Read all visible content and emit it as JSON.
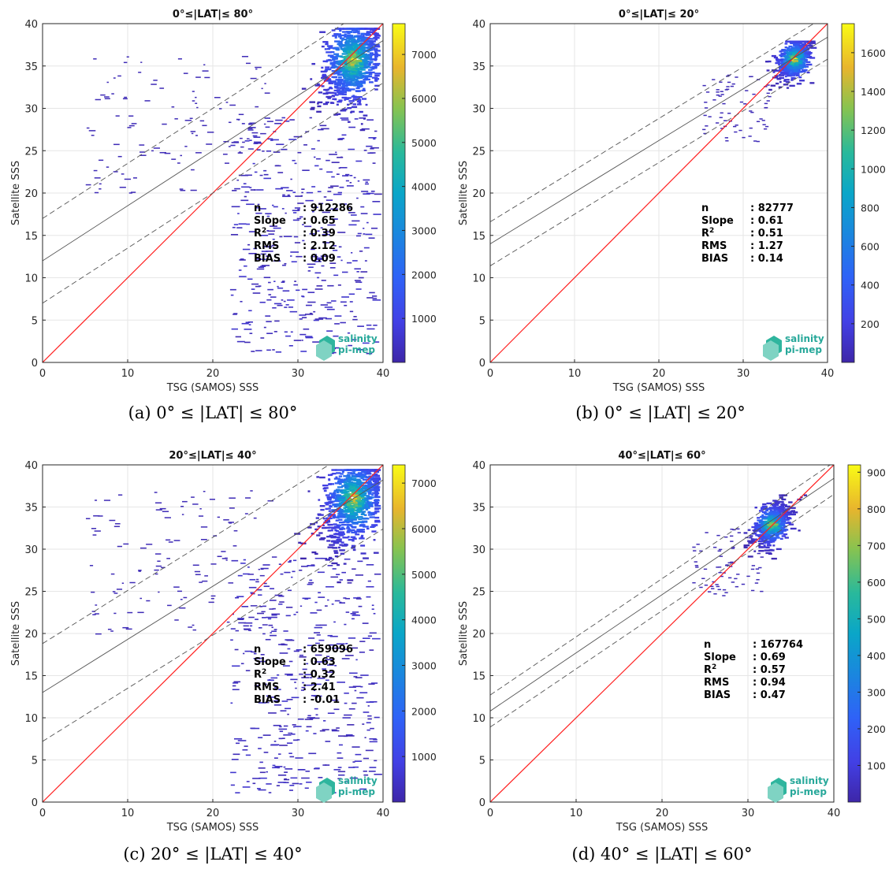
{
  "chart_data": [
    {
      "type": "heatmap",
      "title": "0°≤|LAT|≤ 80°",
      "xlabel": "TSG (SAMOS) SSS",
      "ylabel": "Satellite SSS",
      "xlim": [
        0,
        40
      ],
      "ylim": [
        0,
        40
      ],
      "xticks": [
        "0",
        "10",
        "20",
        "30",
        "40"
      ],
      "yticks": [
        "0",
        "5",
        "10",
        "15",
        "20",
        "25",
        "30",
        "35",
        "40"
      ],
      "grid": true,
      "colorbar": {
        "ticks": [
          "1000",
          "2000",
          "3000",
          "4000",
          "5000",
          "6000",
          "7000"
        ],
        "max": 7700
      },
      "stats": [
        {
          "label": "n",
          "value": ": 912286"
        },
        {
          "label": "Slope",
          "value": ": 0.65"
        },
        {
          "label": "R",
          "sup": "2",
          "value": ": 0.39"
        },
        {
          "label": "RMS",
          "value": ": 2.12"
        },
        {
          "label": "BIAS",
          "value": ": 0.09"
        }
      ],
      "fit_line": {
        "intercept": 12.0,
        "slope": 0.65
      },
      "band_offset": 5.0,
      "identity_line": true,
      "density": {
        "peak_x": 36.2,
        "peak_y": 35.8,
        "x_range": [
          27,
          39
        ],
        "y_range": [
          22,
          39.5
        ],
        "sparse_tail": true
      },
      "caption": "(a) 0° ≤ |LAT| ≤ 80°",
      "logo": [
        "salinity",
        "pi-mep"
      ]
    },
    {
      "type": "heatmap",
      "title": "0°≤|LAT|≤ 20°",
      "xlabel": "TSG (SAMOS) SSS",
      "ylabel": "Satellite SSS",
      "xlim": [
        0,
        40
      ],
      "ylim": [
        0,
        40
      ],
      "xticks": [
        "0",
        "10",
        "20",
        "30",
        "40"
      ],
      "yticks": [
        "0",
        "5",
        "10",
        "15",
        "20",
        "25",
        "30",
        "35",
        "40"
      ],
      "grid": true,
      "colorbar": {
        "ticks": [
          "200",
          "400",
          "600",
          "800",
          "1000",
          "1200",
          "1400",
          "1600"
        ],
        "max": 1750
      },
      "stats": [
        {
          "label": "n",
          "value": ": 82777"
        },
        {
          "label": "Slope",
          "value": ": 0.61"
        },
        {
          "label": "R",
          "sup": "2",
          "value": ": 0.51"
        },
        {
          "label": "RMS",
          "value": ": 1.27"
        },
        {
          "label": "BIAS",
          "value": ": 0.14"
        }
      ],
      "fit_line": {
        "intercept": 14.0,
        "slope": 0.61
      },
      "band_offset": 2.6,
      "identity_line": true,
      "density": {
        "peak_x": 35.8,
        "peak_y": 35.9,
        "x_range": [
          31,
          38
        ],
        "y_range": [
          30,
          38
        ],
        "sparse_tail": false
      },
      "caption": "(b) 0° ≤ |LAT| ≤ 20°",
      "logo": [
        "salinity",
        "pi-mep"
      ]
    },
    {
      "type": "heatmap",
      "title": "20°≤|LAT|≤ 40°",
      "xlabel": "TSG (SAMOS) SSS",
      "ylabel": "Satellite SSS",
      "xlim": [
        0,
        40
      ],
      "ylim": [
        0,
        40
      ],
      "xticks": [
        "0",
        "10",
        "20",
        "30",
        "40"
      ],
      "yticks": [
        "0",
        "5",
        "10",
        "15",
        "20",
        "25",
        "30",
        "35",
        "40"
      ],
      "grid": true,
      "colorbar": {
        "ticks": [
          "1000",
          "2000",
          "3000",
          "4000",
          "5000",
          "6000",
          "7000"
        ],
        "max": 7400
      },
      "stats": [
        {
          "label": "n",
          "value": ": 659096"
        },
        {
          "label": "Slope",
          "value": ": 0.63"
        },
        {
          "label": "R",
          "sup": "2",
          "value": ": 0.32"
        },
        {
          "label": "RMS",
          "value": ": 2.41"
        },
        {
          "label": "BIAS",
          "value": ": -0.01"
        }
      ],
      "fit_line": {
        "intercept": 13.0,
        "slope": 0.63
      },
      "band_offset": 5.8,
      "identity_line": true,
      "density": {
        "peak_x": 36.3,
        "peak_y": 36.0,
        "x_range": [
          27,
          39
        ],
        "y_range": [
          22,
          39.5
        ],
        "sparse_tail": true
      },
      "caption": "(c) 20° ≤ |LAT| ≤ 40°",
      "logo": [
        "salinity",
        "pi-mep"
      ]
    },
    {
      "type": "heatmap",
      "title": "40°≤|LAT|≤ 60°",
      "xlabel": "TSG (SAMOS) SSS",
      "ylabel": "Satellite SSS",
      "xlim": [
        0,
        40
      ],
      "ylim": [
        0,
        40
      ],
      "xticks": [
        "0",
        "10",
        "20",
        "30",
        "40"
      ],
      "yticks": [
        "0",
        "5",
        "10",
        "15",
        "20",
        "25",
        "30",
        "35",
        "40"
      ],
      "grid": true,
      "colorbar": {
        "ticks": [
          "100",
          "200",
          "300",
          "400",
          "500",
          "600",
          "700",
          "800",
          "900"
        ],
        "max": 920
      },
      "stats": [
        {
          "label": "n",
          "value": ": 167764"
        },
        {
          "label": "Slope",
          "value": ": 0.69"
        },
        {
          "label": "R",
          "sup": "2",
          "value": ": 0.57"
        },
        {
          "label": "RMS",
          "value": ": 0.94"
        },
        {
          "label": "BIAS",
          "value": ": 0.47"
        }
      ],
      "fit_line": {
        "intercept": 10.8,
        "slope": 0.69
      },
      "band_offset": 1.9,
      "identity_line": true,
      "density": {
        "peak_x": 32.5,
        "peak_y": 33.0,
        "x_range": [
          29.5,
          36.5
        ],
        "y_range": [
          28.5,
          36.5
        ],
        "sparse_tail": false
      },
      "caption": "(d) 40° ≤ |LAT| ≤ 60°",
      "logo": [
        "salinity",
        "pi-mep"
      ]
    }
  ]
}
